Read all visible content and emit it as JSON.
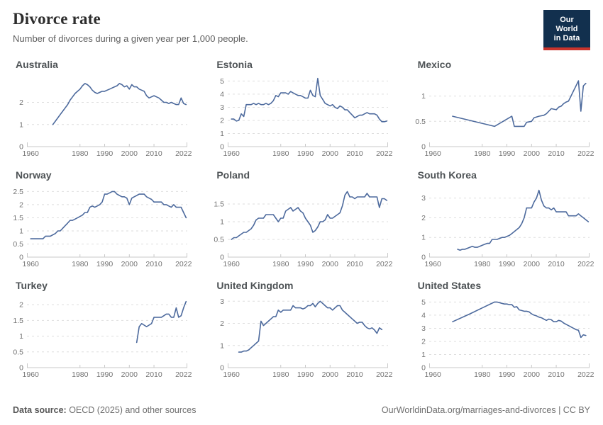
{
  "header": {
    "title": "Divorce rate",
    "subtitle": "Number of divorces during a given year per 1,000 people."
  },
  "logo": {
    "line1": "Our World",
    "line2": "in Data"
  },
  "footer": {
    "source_label": "Data source:",
    "source_value": " OECD (2025) and other sources",
    "attribution": "OurWorldinData.org/marriages-and-divorces | CC BY"
  },
  "colors": {
    "line": "#4d6a9d",
    "grid": "#dedede",
    "axis": "#c9c9c9",
    "tick_text": "#737373",
    "title": "#2d2d2d",
    "chart_title": "#4e5356",
    "logo_bg": "#12304e",
    "logo_red": "#c9342c"
  },
  "chart_data": [
    {
      "type": "line",
      "title": "Australia",
      "ymax": 3.2,
      "yticks": [
        0,
        1,
        2
      ],
      "xticks": [
        1960,
        1980,
        1990,
        2000,
        2010,
        2022
      ],
      "xlim": [
        1958.5,
        2023.5
      ],
      "x": [
        1969,
        1970,
        1971,
        1972,
        1973,
        1974,
        1975,
        1976,
        1977,
        1978,
        1979,
        1980,
        1981,
        1982,
        1983,
        1984,
        1985,
        1986,
        1987,
        1988,
        1989,
        1990,
        1991,
        1992,
        1993,
        1994,
        1995,
        1996,
        1997,
        1998,
        1999,
        2000,
        2001,
        2002,
        2003,
        2004,
        2005,
        2006,
        2007,
        2008,
        2009,
        2010,
        2011,
        2012,
        2013,
        2014,
        2015,
        2016,
        2017,
        2018,
        2019,
        2020,
        2021,
        2022,
        2023
      ],
      "values": [
        1.0,
        1.15,
        1.3,
        1.45,
        1.6,
        1.75,
        1.9,
        2.1,
        2.25,
        2.4,
        2.5,
        2.6,
        2.75,
        2.85,
        2.8,
        2.7,
        2.55,
        2.45,
        2.4,
        2.45,
        2.5,
        2.5,
        2.55,
        2.6,
        2.65,
        2.7,
        2.75,
        2.85,
        2.8,
        2.7,
        2.75,
        2.6,
        2.8,
        2.7,
        2.7,
        2.6,
        2.55,
        2.5,
        2.3,
        2.2,
        2.25,
        2.3,
        2.25,
        2.2,
        2.1,
        2.0,
        2.0,
        1.95,
        2.0,
        1.95,
        1.9,
        1.9,
        2.2,
        1.95,
        1.9
      ]
    },
    {
      "type": "line",
      "title": "Estonia",
      "ymax": 5.4,
      "yticks": [
        0,
        1,
        2,
        3,
        4,
        5
      ],
      "xticks": [
        1960,
        1980,
        1990,
        2000,
        2010,
        2022
      ],
      "xlim": [
        1958.5,
        2023.5
      ],
      "x": [
        1960,
        1961,
        1962,
        1963,
        1964,
        1965,
        1966,
        1967,
        1968,
        1969,
        1970,
        1971,
        1972,
        1973,
        1974,
        1975,
        1976,
        1977,
        1978,
        1979,
        1980,
        1981,
        1982,
        1983,
        1984,
        1985,
        1986,
        1987,
        1988,
        1989,
        1990,
        1991,
        1992,
        1993,
        1994,
        1995,
        1996,
        1997,
        1998,
        1999,
        2000,
        2001,
        2002,
        2003,
        2004,
        2005,
        2006,
        2007,
        2008,
        2009,
        2010,
        2011,
        2012,
        2013,
        2014,
        2015,
        2016,
        2017,
        2018,
        2019,
        2020,
        2021,
        2022,
        2023
      ],
      "values": [
        2.1,
        2.1,
        1.95,
        2.0,
        2.5,
        2.3,
        3.2,
        3.2,
        3.2,
        3.3,
        3.2,
        3.3,
        3.2,
        3.2,
        3.3,
        3.2,
        3.3,
        3.5,
        3.9,
        3.8,
        4.1,
        4.1,
        4.1,
        4.0,
        4.2,
        4.1,
        4.0,
        3.9,
        3.9,
        3.8,
        3.7,
        3.7,
        4.3,
        3.9,
        3.8,
        5.2,
        3.9,
        3.6,
        3.3,
        3.2,
        3.1,
        3.2,
        3.0,
        2.9,
        3.1,
        3.0,
        2.8,
        2.8,
        2.6,
        2.4,
        2.2,
        2.3,
        2.4,
        2.4,
        2.5,
        2.6,
        2.5,
        2.5,
        2.5,
        2.4,
        2.1,
        1.9,
        1.9,
        1.95
      ]
    },
    {
      "type": "line",
      "title": "Mexico",
      "ymax": 1.4,
      "yticks": [
        0,
        0.5,
        1
      ],
      "xticks": [
        1960,
        1980,
        1990,
        2000,
        2010,
        2022
      ],
      "xlim": [
        1958.5,
        2023.5
      ],
      "x": [
        1968,
        1985,
        1992,
        1993,
        1997,
        1998,
        2000,
        2001,
        2003,
        2005,
        2006,
        2007,
        2008,
        2010,
        2011,
        2012,
        2013,
        2014,
        2015,
        2016,
        2017,
        2018,
        2019,
        2020,
        2021,
        2022
      ],
      "values": [
        0.6,
        0.4,
        0.6,
        0.4,
        0.4,
        0.48,
        0.5,
        0.57,
        0.6,
        0.62,
        0.65,
        0.7,
        0.75,
        0.73,
        0.78,
        0.8,
        0.85,
        0.88,
        0.9,
        1.0,
        1.1,
        1.2,
        1.3,
        0.7,
        1.2,
        1.25
      ]
    },
    {
      "type": "line",
      "title": "Norway",
      "ymax": 2.7,
      "yticks": [
        0,
        0.5,
        1,
        1.5,
        2,
        2.5
      ],
      "xticks": [
        1960,
        1980,
        1990,
        2000,
        2010,
        2022
      ],
      "xlim": [
        1958.5,
        2023.5
      ],
      "x": [
        1960,
        1961,
        1962,
        1963,
        1964,
        1965,
        1966,
        1967,
        1968,
        1969,
        1970,
        1971,
        1972,
        1973,
        1974,
        1975,
        1976,
        1977,
        1978,
        1979,
        1980,
        1981,
        1982,
        1983,
        1984,
        1985,
        1986,
        1987,
        1988,
        1989,
        1990,
        1991,
        1992,
        1993,
        1994,
        1995,
        1996,
        1997,
        1998,
        1999,
        2000,
        2001,
        2002,
        2003,
        2004,
        2005,
        2006,
        2007,
        2008,
        2009,
        2010,
        2011,
        2012,
        2013,
        2014,
        2015,
        2016,
        2017,
        2018,
        2019,
        2020,
        2021,
        2022,
        2023
      ],
      "values": [
        0.7,
        0.7,
        0.7,
        0.7,
        0.7,
        0.7,
        0.8,
        0.8,
        0.8,
        0.85,
        0.9,
        1.0,
        1.0,
        1.1,
        1.2,
        1.3,
        1.4,
        1.4,
        1.45,
        1.5,
        1.55,
        1.6,
        1.7,
        1.7,
        1.9,
        1.95,
        1.9,
        1.95,
        2.0,
        2.1,
        2.4,
        2.4,
        2.45,
        2.5,
        2.5,
        2.4,
        2.35,
        2.3,
        2.3,
        2.25,
        2.0,
        2.25,
        2.3,
        2.35,
        2.4,
        2.4,
        2.4,
        2.3,
        2.25,
        2.2,
        2.1,
        2.1,
        2.1,
        2.1,
        2.0,
        2.0,
        1.95,
        1.9,
        2.0,
        1.9,
        1.9,
        1.9,
        1.7,
        1.5
      ]
    },
    {
      "type": "line",
      "title": "Poland",
      "ymax": 2.0,
      "yticks": [
        0,
        0.5,
        1,
        1.5
      ],
      "xticks": [
        1960,
        1980,
        1990,
        2000,
        2010,
        2022
      ],
      "xlim": [
        1958.5,
        2023.5
      ],
      "x": [
        1960,
        1961,
        1962,
        1963,
        1964,
        1965,
        1966,
        1967,
        1968,
        1969,
        1970,
        1971,
        1972,
        1973,
        1974,
        1975,
        1976,
        1977,
        1978,
        1979,
        1980,
        1981,
        1982,
        1983,
        1984,
        1985,
        1986,
        1987,
        1988,
        1989,
        1990,
        1991,
        1992,
        1993,
        1994,
        1995,
        1996,
        1997,
        1998,
        1999,
        2000,
        2001,
        2002,
        2003,
        2004,
        2005,
        2006,
        2007,
        2008,
        2009,
        2010,
        2011,
        2012,
        2013,
        2014,
        2015,
        2016,
        2017,
        2018,
        2019,
        2020,
        2021,
        2022,
        2023
      ],
      "values": [
        0.5,
        0.55,
        0.55,
        0.6,
        0.65,
        0.7,
        0.7,
        0.75,
        0.8,
        0.9,
        1.05,
        1.1,
        1.1,
        1.1,
        1.2,
        1.2,
        1.2,
        1.2,
        1.1,
        1.0,
        1.1,
        1.1,
        1.3,
        1.35,
        1.4,
        1.3,
        1.35,
        1.4,
        1.3,
        1.25,
        1.1,
        1.0,
        0.9,
        0.7,
        0.75,
        0.85,
        1.0,
        1.0,
        1.05,
        1.2,
        1.1,
        1.1,
        1.15,
        1.2,
        1.25,
        1.45,
        1.75,
        1.85,
        1.7,
        1.7,
        1.65,
        1.7,
        1.7,
        1.7,
        1.7,
        1.8,
        1.7,
        1.7,
        1.7,
        1.7,
        1.4,
        1.65,
        1.65,
        1.6
      ]
    },
    {
      "type": "line",
      "title": "South Korea",
      "ymax": 3.6,
      "yticks": [
        0,
        1,
        2,
        3
      ],
      "xticks": [
        1960,
        1980,
        1990,
        2000,
        2010,
        2022
      ],
      "xlim": [
        1958.5,
        2023.5
      ],
      "x": [
        1970,
        1971,
        1972,
        1973,
        1974,
        1975,
        1976,
        1977,
        1978,
        1979,
        1980,
        1981,
        1982,
        1983,
        1984,
        1985,
        1986,
        1987,
        1988,
        1989,
        1990,
        1991,
        1992,
        1993,
        1994,
        1995,
        1996,
        1997,
        1998,
        1999,
        2000,
        2001,
        2002,
        2003,
        2004,
        2005,
        2006,
        2007,
        2008,
        2009,
        2010,
        2011,
        2012,
        2013,
        2014,
        2015,
        2016,
        2017,
        2018,
        2019,
        2020,
        2021,
        2022,
        2023
      ],
      "values": [
        0.4,
        0.35,
        0.4,
        0.4,
        0.45,
        0.5,
        0.55,
        0.5,
        0.5,
        0.55,
        0.6,
        0.65,
        0.7,
        0.7,
        0.9,
        0.9,
        0.9,
        0.95,
        1.0,
        1.0,
        1.05,
        1.1,
        1.2,
        1.3,
        1.4,
        1.5,
        1.7,
        2.0,
        2.5,
        2.5,
        2.5,
        2.8,
        3.0,
        3.4,
        2.9,
        2.6,
        2.5,
        2.5,
        2.4,
        2.5,
        2.3,
        2.3,
        2.3,
        2.3,
        2.3,
        2.1,
        2.1,
        2.1,
        2.1,
        2.2,
        2.1,
        2.0,
        1.9,
        1.8
      ]
    },
    {
      "type": "line",
      "title": "Turkey",
      "ymax": 2.25,
      "yticks": [
        0,
        0.5,
        1,
        1.5,
        2
      ],
      "xticks": [
        1960,
        1980,
        1990,
        2000,
        2010,
        2022
      ],
      "xlim": [
        1958.5,
        2023.5
      ],
      "x": [
        2003,
        2004,
        2005,
        2006,
        2007,
        2008,
        2009,
        2010,
        2011,
        2012,
        2013,
        2014,
        2015,
        2016,
        2017,
        2018,
        2019,
        2020,
        2021,
        2022,
        2023
      ],
      "values": [
        0.8,
        1.3,
        1.4,
        1.35,
        1.3,
        1.35,
        1.4,
        1.6,
        1.6,
        1.6,
        1.6,
        1.65,
        1.7,
        1.7,
        1.6,
        1.6,
        1.9,
        1.6,
        1.65,
        1.9,
        2.1
      ]
    },
    {
      "type": "line",
      "title": "United Kingdom",
      "ymax": 3.2,
      "yticks": [
        0,
        1,
        2,
        3
      ],
      "xticks": [
        1960,
        1980,
        1990,
        2000,
        2010,
        2022
      ],
      "xlim": [
        1958.5,
        2023.5
      ],
      "x": [
        1963,
        1964,
        1965,
        1966,
        1967,
        1968,
        1969,
        1970,
        1971,
        1972,
        1973,
        1974,
        1975,
        1976,
        1977,
        1978,
        1979,
        1980,
        1981,
        1982,
        1983,
        1984,
        1985,
        1986,
        1987,
        1988,
        1989,
        1990,
        1991,
        1992,
        1993,
        1994,
        1995,
        1996,
        1997,
        1998,
        1999,
        2000,
        2001,
        2002,
        2003,
        2004,
        2005,
        2006,
        2007,
        2008,
        2009,
        2010,
        2011,
        2012,
        2013,
        2014,
        2015,
        2016,
        2017,
        2018,
        2019,
        2020,
        2021
      ],
      "values": [
        0.7,
        0.7,
        0.75,
        0.75,
        0.8,
        0.9,
        1.0,
        1.1,
        1.2,
        2.1,
        1.9,
        2.0,
        2.1,
        2.2,
        2.3,
        2.3,
        2.6,
        2.5,
        2.6,
        2.6,
        2.6,
        2.6,
        2.8,
        2.7,
        2.7,
        2.7,
        2.65,
        2.7,
        2.8,
        2.8,
        2.9,
        2.75,
        2.9,
        3.0,
        2.9,
        2.8,
        2.7,
        2.7,
        2.6,
        2.7,
        2.8,
        2.8,
        2.6,
        2.5,
        2.4,
        2.3,
        2.2,
        2.1,
        2.0,
        2.05,
        2.05,
        1.9,
        1.8,
        1.75,
        1.8,
        1.7,
        1.55,
        1.8,
        1.72
      ]
    },
    {
      "type": "line",
      "title": "United States",
      "ymax": 5.4,
      "yticks": [
        0,
        1,
        2,
        3,
        4,
        5
      ],
      "xticks": [
        1960,
        1980,
        1990,
        2000,
        2010,
        2022
      ],
      "xlim": [
        1958.5,
        2023.5
      ],
      "x": [
        1968,
        1975,
        1980,
        1985,
        1986,
        1987,
        1988,
        1989,
        1990,
        1991,
        1992,
        1993,
        1994,
        1995,
        1996,
        1997,
        1998,
        1999,
        2000,
        2001,
        2002,
        2003,
        2004,
        2005,
        2006,
        2007,
        2008,
        2009,
        2010,
        2011,
        2012,
        2013,
        2014,
        2015,
        2016,
        2017,
        2018,
        2019,
        2020,
        2021,
        2022
      ],
      "values": [
        3.5,
        4.1,
        4.55,
        5.0,
        5.0,
        4.95,
        4.9,
        4.85,
        4.85,
        4.8,
        4.8,
        4.6,
        4.65,
        4.4,
        4.35,
        4.3,
        4.3,
        4.25,
        4.1,
        4.0,
        3.95,
        3.85,
        3.8,
        3.7,
        3.6,
        3.7,
        3.65,
        3.5,
        3.5,
        3.6,
        3.55,
        3.4,
        3.3,
        3.2,
        3.1,
        3.0,
        2.9,
        2.85,
        2.3,
        2.5,
        2.45
      ]
    }
  ]
}
